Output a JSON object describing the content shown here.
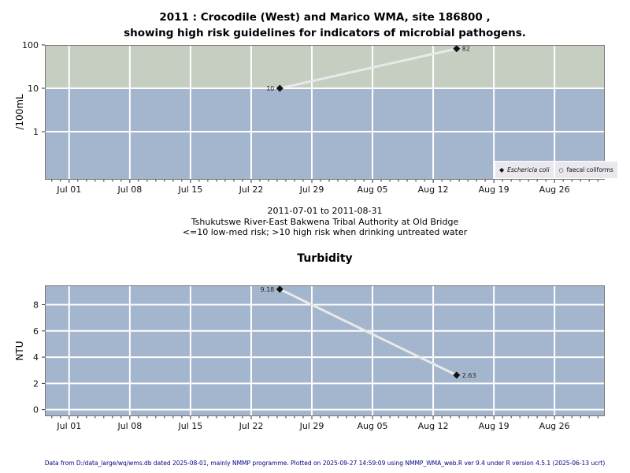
{
  "header": {
    "title_line1": "2011 : Crocodile (West) and Marico WMA, site 186800 ,",
    "title_line2": "showing high risk guidelines for indicators of microbial pathogens."
  },
  "between_text": {
    "date_range": "2011-07-01 to 2011-08-31",
    "site_name": "Tshukutswe River-East Bakwena Tribal Authority at Old Bridge",
    "risk_note": "<=10 low-med risk; >10 high risk when drinking untreated water"
  },
  "legend": {
    "items": [
      {
        "marker": "diamond-filled",
        "glyph": "◆",
        "label": "Eschericia coli",
        "italic": true
      },
      {
        "marker": "circle-open",
        "glyph": "○",
        "label": "faecal coliforms",
        "italic": false
      }
    ]
  },
  "footer": {
    "text": "Data from D:/data_large/wq/wms.db dated 2025-08-01, mainly NMMP programme. Plotted on 2025-09-27 14:59:09 using NMMP_WMA_web.R ver 9.4 under R version 4.5.1 (2025-06-13 ucrt)"
  },
  "colors": {
    "band_high_risk_green": "#c5cec0",
    "band_low_risk_blue": "#a4b5ce",
    "gridline": "#ffffff",
    "trend_line": "#e9e9e9",
    "marker": "#111111",
    "plot_border": "#777777",
    "tick": "#333333",
    "tick_label": "#111111",
    "point_label": "#222222",
    "footer_text": "#000080",
    "legend_bg": "#e9e9ed"
  },
  "chart_data": [
    {
      "type": "scatter",
      "name": "microbial pathogens",
      "ylabel": "/100mL",
      "yscale": "log",
      "ylim": [
        0.078,
        100
      ],
      "yticks": [
        {
          "value": 1,
          "label": "1"
        },
        {
          "value": 10,
          "label": "10"
        },
        {
          "value": 100,
          "label": "100"
        }
      ],
      "xlim_days": [
        -2.8,
        61.8
      ],
      "xticks": [
        {
          "day": 0,
          "label": "Jul 01"
        },
        {
          "day": 7,
          "label": "Jul 08"
        },
        {
          "day": 14,
          "label": "Jul 15"
        },
        {
          "day": 21,
          "label": "Jul 22"
        },
        {
          "day": 28,
          "label": "Jul 29"
        },
        {
          "day": 35,
          "label": "Aug 05"
        },
        {
          "day": 42,
          "label": "Aug 12"
        },
        {
          "day": 49,
          "label": "Aug 19"
        },
        {
          "day": 56,
          "label": "Aug 26"
        }
      ],
      "minor_tick_interval_days": 1,
      "guideline_value": 10,
      "band_above_color": "#c5cec0",
      "band_below_color": "#a4b5ce",
      "series": [
        {
          "name": "Eschericia coli",
          "marker": "diamond-filled",
          "points": [
            {
              "x_day": 24.3,
              "value": 10,
              "label": "10",
              "label_side": "left"
            },
            {
              "x_day": 44.7,
              "value": 82,
              "label": "82",
              "label_side": "right"
            }
          ]
        }
      ]
    },
    {
      "type": "scatter",
      "title": "Turbidity",
      "ylabel": "NTU",
      "yscale": "linear",
      "ylim": [
        -0.5,
        9.47
      ],
      "yticks": [
        {
          "value": 0,
          "label": "0"
        },
        {
          "value": 2,
          "label": "2"
        },
        {
          "value": 4,
          "label": "4"
        },
        {
          "value": 6,
          "label": "6"
        },
        {
          "value": 8,
          "label": "8"
        }
      ],
      "xlim_days": [
        -2.8,
        61.8
      ],
      "xticks": [
        {
          "day": 0,
          "label": "Jul 01"
        },
        {
          "day": 7,
          "label": "Jul 08"
        },
        {
          "day": 14,
          "label": "Jul 15"
        },
        {
          "day": 21,
          "label": "Jul 22"
        },
        {
          "day": 28,
          "label": "Jul 29"
        },
        {
          "day": 35,
          "label": "Aug 05"
        },
        {
          "day": 42,
          "label": "Aug 12"
        },
        {
          "day": 49,
          "label": "Aug 19"
        },
        {
          "day": 56,
          "label": "Aug 26"
        }
      ],
      "minor_tick_interval_days": 1,
      "band_color": "#a4b5ce",
      "series": [
        {
          "name": "Turbidity",
          "marker": "diamond-filled",
          "points": [
            {
              "x_day": 24.3,
              "value": 9.18,
              "label": "9.18",
              "label_side": "left"
            },
            {
              "x_day": 44.7,
              "value": 2.63,
              "label": "2.63",
              "label_side": "right"
            }
          ]
        }
      ]
    }
  ]
}
